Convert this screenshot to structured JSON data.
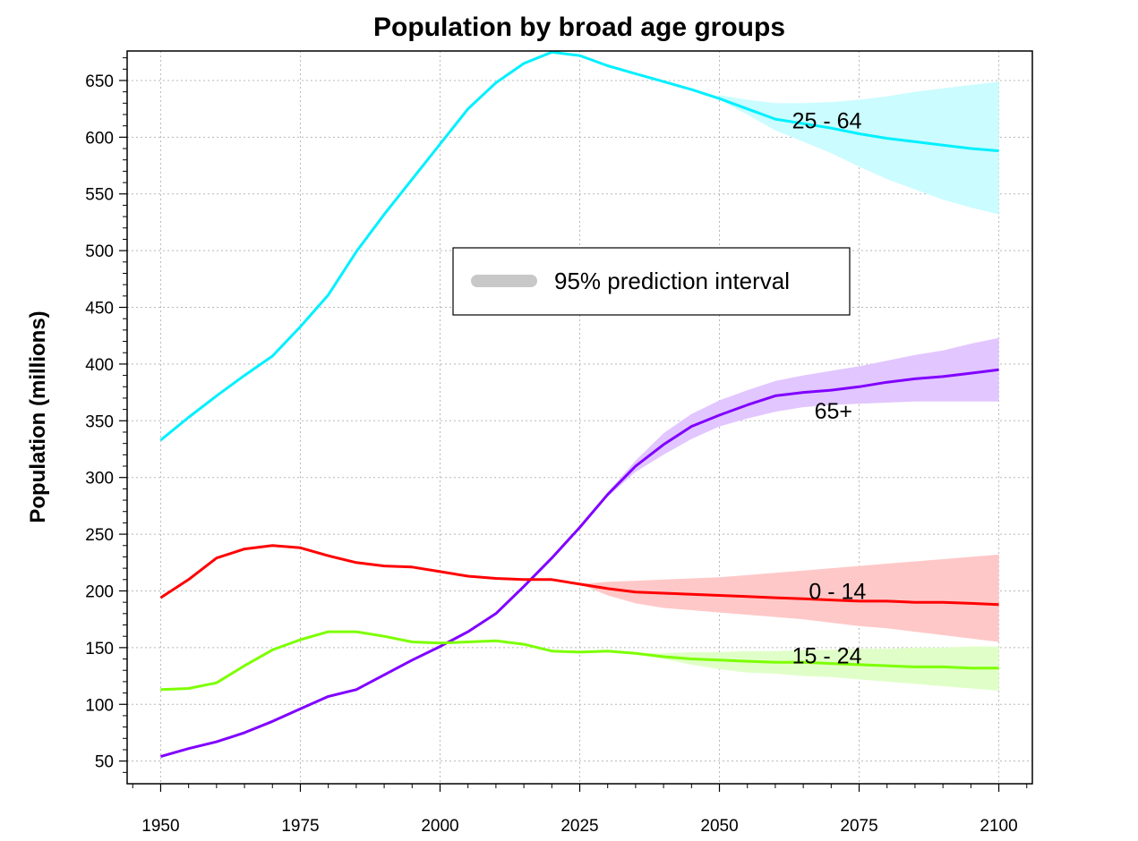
{
  "chart_data": {
    "type": "line",
    "title": "Population by broad age groups",
    "xlabel": "",
    "ylabel": "Population (millions)",
    "xlim": [
      1944,
      2106
    ],
    "ylim": [
      30,
      676
    ],
    "x_ticks": [
      1950,
      1975,
      2000,
      2025,
      2050,
      2075,
      2100
    ],
    "y_ticks": [
      50,
      100,
      150,
      200,
      250,
      300,
      350,
      400,
      450,
      500,
      550,
      600,
      650
    ],
    "grid": true,
    "legend": {
      "label": "95% prediction interval",
      "color": "#c8c8c8",
      "placement": "upper-center"
    },
    "series": [
      {
        "name": "25 - 64",
        "color": "#00f0ff",
        "band_color": "#cbfcff",
        "x": [
          1950,
          1955,
          1960,
          1965,
          1970,
          1975,
          1980,
          1985,
          1990,
          1995,
          2000,
          2005,
          2010,
          2015,
          2020,
          2025,
          2030,
          2035,
          2040,
          2045,
          2050,
          2055,
          2060,
          2065,
          2070,
          2075,
          2080,
          2085,
          2090,
          2095,
          2100
        ],
        "values": [
          333,
          353,
          372,
          390,
          407,
          433,
          461,
          499,
          532,
          563,
          594,
          625,
          648,
          665,
          675,
          672,
          663,
          656,
          649,
          642,
          634,
          625,
          616,
          612,
          608,
          603,
          599,
          596,
          593,
          590,
          588
        ],
        "interval": {
          "x": [
            2050,
            2055,
            2060,
            2065,
            2070,
            2075,
            2080,
            2085,
            2090,
            2095,
            2100
          ],
          "lower": [
            633,
            620,
            606,
            596,
            586,
            574,
            563,
            554,
            545,
            538,
            532
          ],
          "upper": [
            637,
            633,
            630,
            630,
            631,
            633,
            636,
            640,
            643,
            646,
            649
          ]
        }
      },
      {
        "name": "65+",
        "color": "#8000ff",
        "band_color": "#e2c6ff",
        "x": [
          1950,
          1955,
          1960,
          1965,
          1970,
          1975,
          1980,
          1985,
          1990,
          1995,
          2000,
          2005,
          2010,
          2015,
          2020,
          2025,
          2030,
          2035,
          2040,
          2045,
          2050,
          2055,
          2060,
          2065,
          2070,
          2075,
          2080,
          2085,
          2090,
          2095,
          2100
        ],
        "values": [
          54,
          61,
          67,
          75,
          85,
          96,
          107,
          113,
          126,
          139,
          151,
          164,
          180,
          204,
          229,
          256,
          285,
          310,
          329,
          345,
          355,
          364,
          372,
          375,
          377,
          380,
          384,
          387,
          389,
          392,
          395
        ],
        "interval": {
          "x": [
            2025,
            2030,
            2035,
            2040,
            2045,
            2050,
            2055,
            2060,
            2065,
            2070,
            2075,
            2080,
            2085,
            2090,
            2095,
            2100
          ],
          "lower": [
            256,
            283,
            305,
            320,
            334,
            345,
            352,
            358,
            362,
            364,
            365,
            366,
            367,
            367,
            367,
            367
          ],
          "upper": [
            256,
            287,
            315,
            339,
            356,
            368,
            377,
            385,
            390,
            394,
            398,
            403,
            408,
            412,
            418,
            423
          ]
        }
      },
      {
        "name": "0 - 14",
        "color": "#ff0000",
        "band_color": "#ffc8c8",
        "x": [
          1950,
          1955,
          1960,
          1965,
          1970,
          1975,
          1980,
          1985,
          1990,
          1995,
          2000,
          2005,
          2010,
          2015,
          2020,
          2025,
          2030,
          2035,
          2040,
          2045,
          2050,
          2055,
          2060,
          2065,
          2070,
          2075,
          2080,
          2085,
          2090,
          2095,
          2100
        ],
        "values": [
          194,
          210,
          229,
          237,
          240,
          238,
          231,
          225,
          222,
          221,
          217,
          213,
          211,
          210,
          210,
          206,
          202,
          199,
          198,
          197,
          196,
          195,
          194,
          193,
          192,
          191,
          191,
          190,
          190,
          189,
          188
        ],
        "interval": {
          "x": [
            2025,
            2030,
            2035,
            2040,
            2045,
            2050,
            2055,
            2060,
            2065,
            2070,
            2075,
            2080,
            2085,
            2090,
            2095,
            2100
          ],
          "lower": [
            206,
            196,
            189,
            185,
            183,
            181,
            179,
            177,
            175,
            172,
            169,
            167,
            164,
            161,
            158,
            155
          ],
          "upper": [
            206,
            208,
            209,
            210,
            211,
            212,
            214,
            216,
            218,
            220,
            222,
            224,
            226,
            228,
            230,
            232
          ]
        }
      },
      {
        "name": "15 - 24",
        "color": "#7cff00",
        "band_color": "#e0ffc8",
        "x": [
          1950,
          1955,
          1960,
          1965,
          1970,
          1975,
          1980,
          1985,
          1990,
          1995,
          2000,
          2005,
          2010,
          2015,
          2020,
          2025,
          2030,
          2035,
          2040,
          2045,
          2050,
          2055,
          2060,
          2065,
          2070,
          2075,
          2080,
          2085,
          2090,
          2095,
          2100
        ],
        "values": [
          113,
          114,
          119,
          134,
          148,
          157,
          164,
          164,
          160,
          155,
          154,
          155,
          156,
          153,
          147,
          146,
          147,
          145,
          142,
          140,
          139,
          138,
          137,
          137,
          136,
          135,
          134,
          133,
          133,
          132,
          132
        ],
        "interval": {
          "x": [
            2035,
            2040,
            2045,
            2050,
            2055,
            2060,
            2065,
            2070,
            2075,
            2080,
            2085,
            2090,
            2095,
            2100
          ],
          "lower": [
            145,
            140,
            135,
            131,
            128,
            127,
            125,
            124,
            122,
            120,
            118,
            116,
            114,
            112
          ],
          "upper": [
            145,
            145,
            146,
            146,
            147,
            147,
            148,
            148,
            149,
            149,
            150,
            150,
            151,
            151
          ]
        }
      }
    ],
    "annotations": [
      {
        "text": "25 - 64",
        "x": 2063,
        "y": 615
      },
      {
        "text": "65+",
        "x": 2067,
        "y": 359
      },
      {
        "text": "0 - 14",
        "x": 2066,
        "y": 200
      },
      {
        "text": "15 - 24",
        "x": 2063,
        "y": 143
      }
    ]
  }
}
